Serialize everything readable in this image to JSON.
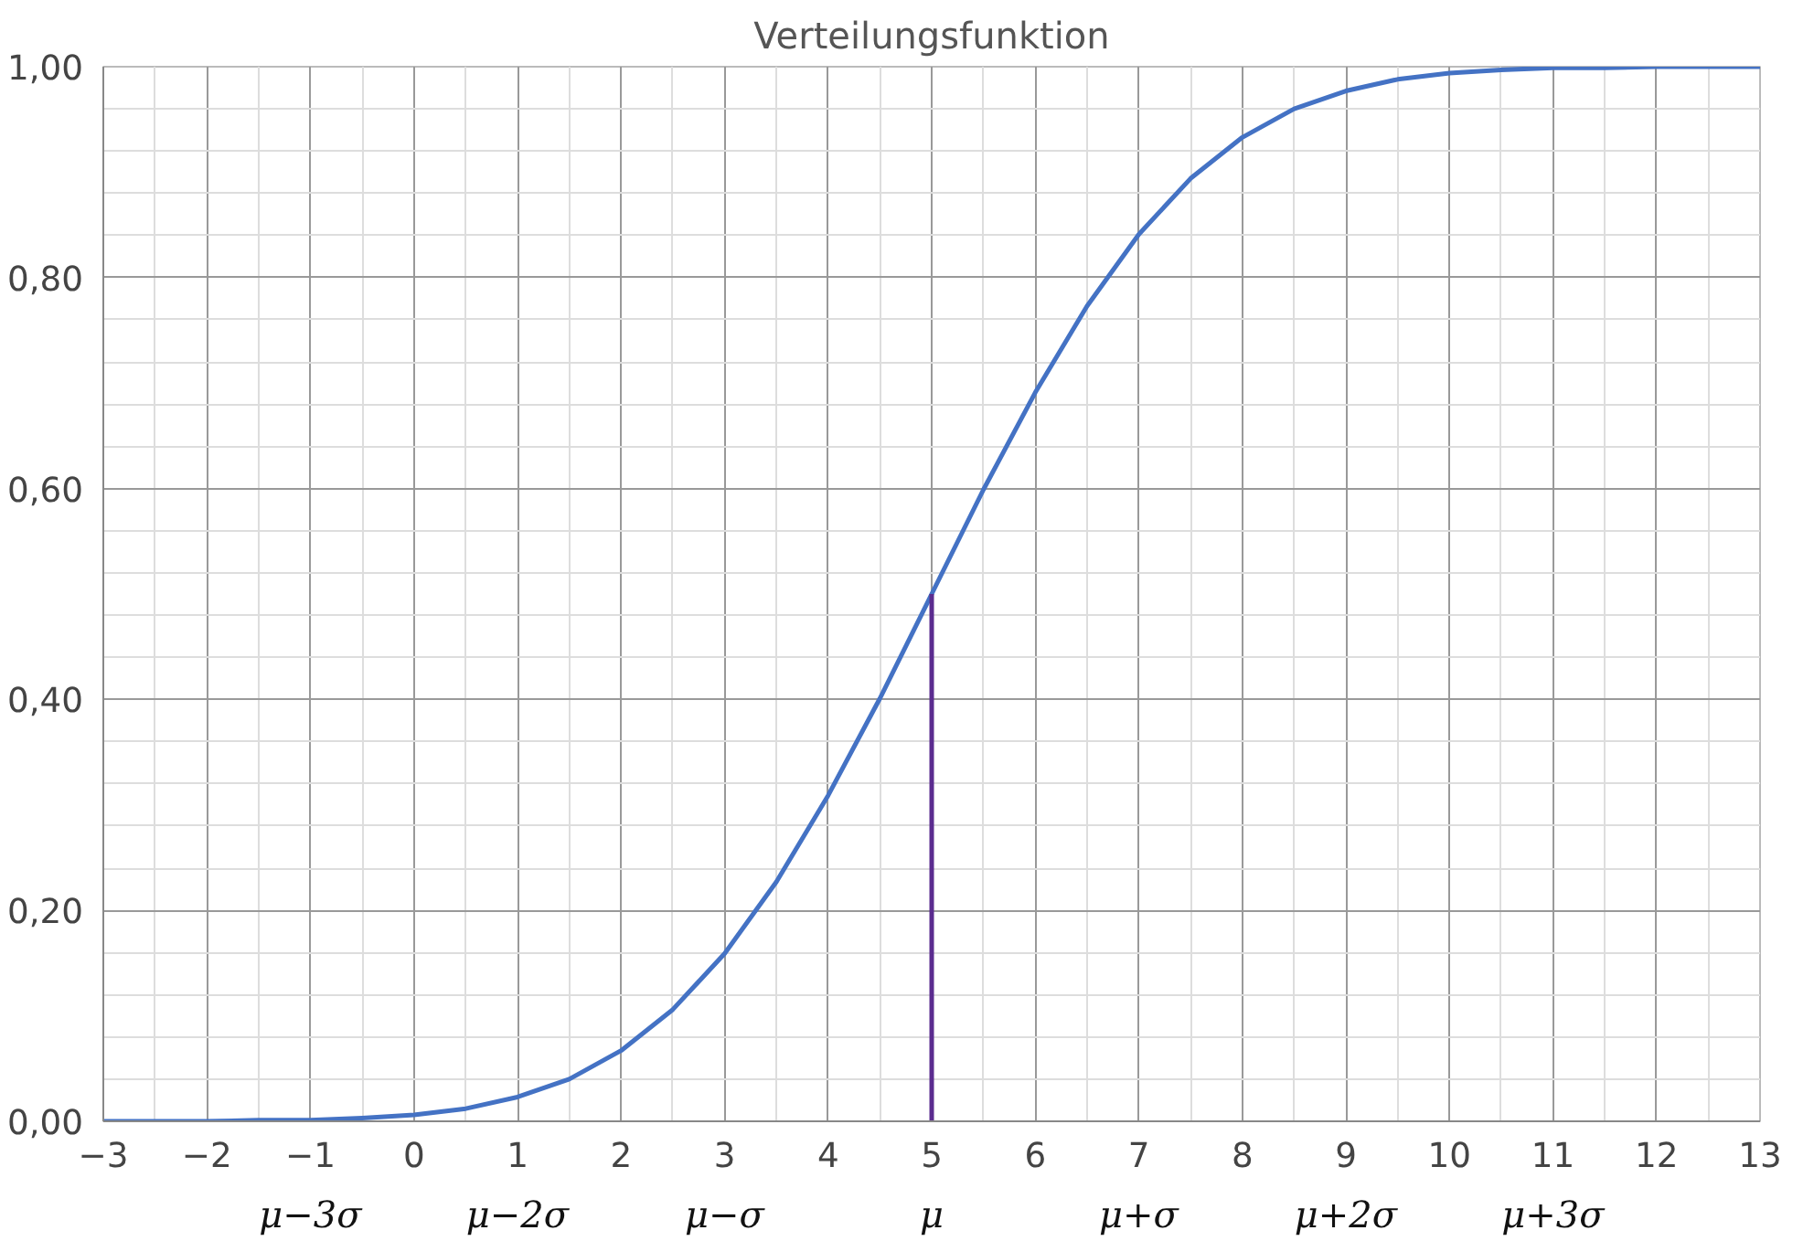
{
  "chart_data": {
    "type": "line",
    "title": "Verteilungsfunktion",
    "xlim": [
      -3,
      13
    ],
    "xticks": [
      -3,
      -2,
      -1,
      0,
      1,
      2,
      3,
      4,
      5,
      6,
      7,
      8,
      9,
      10,
      11,
      12,
      13
    ],
    "annotations": [
      "μ−3σ",
      "μ−2σ",
      "μ−σ",
      "μ",
      "μ+σ",
      "μ+2σ",
      "μ+3σ"
    ],
    "ylim": [
      0,
      1
    ],
    "yticks": [
      {
        "value": 0,
        "label": "0,00"
      },
      {
        "value": 0.2,
        "label": "0,20"
      },
      {
        "value": 0.4,
        "label": "0,40"
      },
      {
        "value": 0.6,
        "label": "0,60"
      },
      {
        "value": 0.8,
        "label": "0,80"
      },
      {
        "value": 1,
        "label": "1,00"
      }
    ],
    "grid": true,
    "series": [
      {
        "color": "#4472c4",
        "x": [
          -3,
          -2.5,
          -2,
          -1.5,
          -1,
          -0.5,
          0,
          0.5,
          1,
          1.5,
          2,
          2.5,
          3,
          3.5,
          4,
          4.5,
          5,
          5.5,
          6,
          6.5,
          7,
          7.5,
          8,
          8.5,
          9,
          9.5,
          10,
          10.5,
          11,
          11.5,
          12,
          12.5,
          13
        ],
        "values": [
          0.0,
          0.0,
          0.0,
          0.001,
          0.001,
          0.003,
          0.006,
          0.012,
          0.023,
          0.04,
          0.067,
          0.106,
          0.159,
          0.227,
          0.309,
          0.401,
          0.5,
          0.599,
          0.691,
          0.773,
          0.841,
          0.894,
          0.933,
          0.96,
          0.977,
          0.988,
          0.994,
          0.997,
          0.999,
          0.999,
          1.0,
          1.0,
          1.0
        ]
      },
      {
        "color": "#5b2c8f",
        "x": [
          5,
          5
        ],
        "values": [
          0,
          0.5
        ]
      }
    ]
  }
}
